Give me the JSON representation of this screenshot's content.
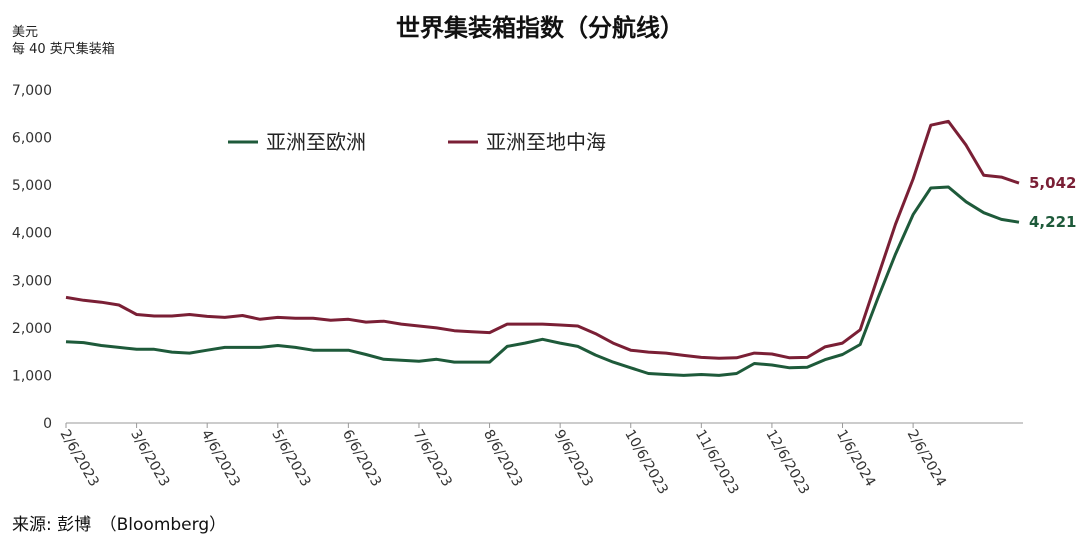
{
  "chart_data": {
    "type": "line",
    "title": "世界集装箱指数（分航线）",
    "y_unit_line1": "美元",
    "y_unit_line2": "每 40 英尺集装箱",
    "ylim": [
      0,
      7000
    ],
    "y_ticks": [
      0,
      1000,
      2000,
      3000,
      4000,
      5000,
      6000,
      7000
    ],
    "y_tick_labels": [
      "0",
      "1,000",
      "2,000",
      "3,000",
      "4,000",
      "5,000",
      "6,000",
      "7,000"
    ],
    "x_tick_labels": [
      "2/6/2023",
      "3/6/2023",
      "4/6/2023",
      "5/6/2023",
      "6/6/2023",
      "7/6/2023",
      "8/6/2023",
      "9/6/2023",
      "10/6/2023",
      "11/6/2023",
      "12/6/2023",
      "1/6/2024",
      "2/6/2024"
    ],
    "x_tick_positions": [
      0,
      4,
      8,
      12,
      16,
      20,
      24,
      28,
      32,
      36,
      40,
      44,
      48
    ],
    "legend_position": "top-left-inside",
    "grid": false,
    "series": [
      {
        "name": "亚洲至欧洲",
        "color": "#1e5a3a",
        "end_label": "4,221",
        "values": [
          1710,
          1690,
          1630,
          1590,
          1550,
          1550,
          1490,
          1470,
          1530,
          1590,
          1590,
          1590,
          1630,
          1590,
          1530,
          1530,
          1530,
          1440,
          1340,
          1320,
          1300,
          1340,
          1280,
          1280,
          1280,
          1610,
          1680,
          1760,
          1680,
          1610,
          1430,
          1280,
          1160,
          1040,
          1020,
          1000,
          1020,
          1000,
          1040,
          1250,
          1220,
          1160,
          1170,
          1330,
          1440,
          1650,
          2620,
          3550,
          4380,
          4940,
          4960,
          4650,
          4420,
          4280,
          4221
        ]
      },
      {
        "name": "亚洲至地中海",
        "color": "#7a1f35",
        "end_label": "5,042",
        "values": [
          2640,
          2580,
          2540,
          2480,
          2280,
          2250,
          2250,
          2280,
          2240,
          2220,
          2260,
          2180,
          2220,
          2200,
          2200,
          2160,
          2180,
          2120,
          2140,
          2080,
          2040,
          2000,
          1940,
          1920,
          1900,
          2080,
          2080,
          2080,
          2060,
          2040,
          1880,
          1680,
          1530,
          1490,
          1470,
          1420,
          1380,
          1360,
          1370,
          1470,
          1450,
          1370,
          1380,
          1600,
          1680,
          1960,
          3070,
          4180,
          5130,
          6260,
          6340,
          5840,
          5210,
          5170,
          5042
        ]
      }
    ]
  },
  "source": "来源: 彭博　（Bloomberg）"
}
